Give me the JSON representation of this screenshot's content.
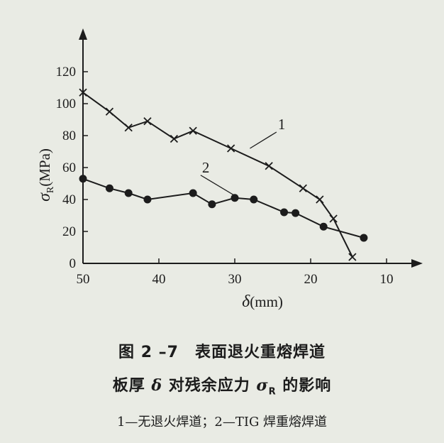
{
  "chart_data": {
    "type": "line",
    "x_axis": {
      "label_symbol": "δ",
      "label_unit": "(mm)",
      "min": 50,
      "max": 7,
      "reversed": true,
      "ticks": [
        50,
        40,
        30,
        20,
        10
      ]
    },
    "y_axis": {
      "label_symbol": "σ",
      "label_subscript": "R",
      "label_unit": "(MPa)",
      "min": 0,
      "max": 130,
      "ticks": [
        0,
        20,
        40,
        60,
        80,
        100,
        120
      ]
    },
    "grid": false,
    "series": [
      {
        "name": "1",
        "marker": "x",
        "points": [
          {
            "x": 50,
            "y": 107
          },
          {
            "x": 46.5,
            "y": 95
          },
          {
            "x": 44,
            "y": 85
          },
          {
            "x": 41.5,
            "y": 89
          },
          {
            "x": 38,
            "y": 78
          },
          {
            "x": 35.5,
            "y": 83
          },
          {
            "x": 30.5,
            "y": 72
          },
          {
            "x": 25.5,
            "y": 61
          },
          {
            "x": 21,
            "y": 47
          },
          {
            "x": 18.8,
            "y": 40
          },
          {
            "x": 17,
            "y": 28
          },
          {
            "x": 14.5,
            "y": 4
          }
        ]
      },
      {
        "name": "2",
        "marker": "circle",
        "points": [
          {
            "x": 50,
            "y": 53
          },
          {
            "x": 46.5,
            "y": 47
          },
          {
            "x": 44,
            "y": 44
          },
          {
            "x": 41.5,
            "y": 40
          },
          {
            "x": 35.5,
            "y": 44
          },
          {
            "x": 33,
            "y": 37
          },
          {
            "x": 30,
            "y": 41
          },
          {
            "x": 27.5,
            "y": 40
          },
          {
            "x": 23.5,
            "y": 32
          },
          {
            "x": 22,
            "y": 31.5
          },
          {
            "x": 18.3,
            "y": 23
          },
          {
            "x": 13,
            "y": 16
          }
        ]
      }
    ],
    "callouts": [
      {
        "label": "1",
        "series": "1",
        "at": {
          "x": 28,
          "y": 72
        },
        "text_at": {
          "x": 24.5,
          "y": 84
        }
      },
      {
        "label": "2",
        "series": "2",
        "at": {
          "x": 29.5,
          "y": 41
        },
        "text_at": {
          "x": 34.5,
          "y": 57
        }
      }
    ]
  },
  "caption": {
    "title": "图 2 –7　表面退火重熔焊道",
    "subtitle_before": "板厚 ",
    "subtitle_delta": "δ",
    "subtitle_middle": " 对残余应力 ",
    "subtitle_sigma": "σ",
    "subtitle_sub": "R",
    "subtitle_after": " 的影响",
    "legend": "1—无退火焊道；2—TIG 焊重熔焊道"
  },
  "colors": {
    "ink": "#1c1c1c",
    "paper": "#e9ebe4"
  }
}
